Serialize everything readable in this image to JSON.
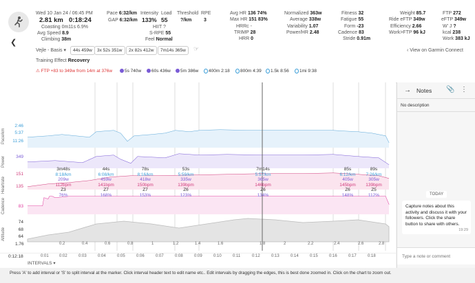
{
  "header": {
    "date": "Wed 10 Jan 24 / 06:45 PM",
    "distance": "2.81 km",
    "duration": "0:18:24",
    "coasting": "Coasting 0m11s",
    "coasting_pct": "6.9%",
    "avg_speed_label": "Avg Speed",
    "avg_speed": "8.9",
    "climbing_label": "Climbing",
    "climbing": "38m",
    "pace_label": "Pace",
    "pace": "6:32/km",
    "gap_label": "GAP",
    "gap": "6:32/km",
    "intensity_label": "Intensity",
    "intensity": "133%",
    "load_label": "Load",
    "load": "55",
    "hiit": "HIIT ?",
    "srpe_label": "S-RPE",
    "srpe": "55",
    "feel_label": "Feel",
    "feel": "Normal",
    "threshold_label": "Threshold",
    "threshold": "?/km",
    "rpe_label": "RPE",
    "rpe": "3",
    "avghr_label": "Avg HR",
    "avghr": "136",
    "avghr_pct": "74%",
    "maxhr_label": "Max HR",
    "maxhr": "151",
    "maxhr_pct": "83%",
    "hrrc": "HRRc -",
    "trimp_label": "TRIMP",
    "trimp": "28",
    "hrr_label": "HRR",
    "hrr": "0",
    "normalized_label": "Normalized",
    "normalized": "363w",
    "average_label": "Average",
    "average": "338w",
    "variability_label": "Variability",
    "variability": "1.07",
    "powerhr_label": "Power/HR",
    "powerhr": "2.48",
    "fitness_label": "Fitness",
    "fitness": "32",
    "fatigue_label": "Fatigue",
    "fatigue": "55",
    "form_label": "Form",
    "form": "-23",
    "cadence_label": "Cadence",
    "cadence": "83",
    "stride_label": "Stride",
    "stride": "0.91m",
    "weight_label": "Weight",
    "weight": "85.7",
    "rideeftp_label": "Ride eFTP",
    "rideeftp": "349w",
    "efficiency_label": "Efficiency",
    "efficiency": "2.66",
    "workftp_label": "Work>FTP",
    "workftp": "96 kJ",
    "ftp_label": "FTP",
    "ftp": "272",
    "eftp_label": "eFTP",
    "eftp": "349w",
    "wj_label": "W' J",
    "wj": "?",
    "kcal_label": "kcal",
    "kcal": "238",
    "work_label": "Work",
    "work": "383 kJ",
    "location": "Vejle - Basis",
    "chips": [
      "44s 459w",
      "3x 52s 351w",
      "2x 82s 412w",
      "7m14s 365w"
    ],
    "garmin_link": "View on Garmin Connect",
    "training_effect_label": "Training Effect",
    "training_effect": "Recovery",
    "interval_bar": {
      "ftp": "FTP +83 to 349w from 14m at 376w",
      "i1": "5s 740w",
      "i2": "60s 436w",
      "i3": "5m 386w",
      "i4": "400m 2:18",
      "i5": "800m 4:39",
      "i6": "1.5k 8:56",
      "i7": "1mi 9:38"
    }
  },
  "intervals": [
    {
      "dur": "3m48s",
      "pace": "8:18/km",
      "power": "209w",
      "hr": "112bpm",
      "zone": "Z3",
      "pct": "76%"
    },
    {
      "dur": "44s",
      "pace": "6:08/km",
      "power": "459w",
      "hr": "141bpm",
      "zone": "Z7",
      "pct": "168%"
    },
    {
      "dur": "78s",
      "pace": "8:16/km",
      "power": "418w",
      "hr": "150bpm",
      "zone": "Z7",
      "pct": "153%"
    },
    {
      "dur": "53s",
      "pace": "5:59/km",
      "power": "335w",
      "hr": "139bpm",
      "zone": "Z6",
      "pct": "123%"
    },
    {
      "dur": "7m14s",
      "pace": "5:57/km",
      "power": "365w",
      "hr": "146bpm",
      "zone": "Z6",
      "pct": "134%"
    },
    {
      "dur": "85s",
      "pace": "6:12/km",
      "power": "405w",
      "hr": "145bpm",
      "zone": "Z6",
      "pct": "148%"
    },
    {
      "dur": "89s",
      "pace": "7:26/km",
      "power": "305w",
      "hr": "139bpm",
      "zone": "Z5",
      "pct": "112%"
    }
  ],
  "axes": {
    "pace_label": "Pace/km",
    "pace_ticks": [
      "2:46",
      "5:37",
      "11:26"
    ],
    "power_label": "Power",
    "power_tick": "349",
    "hr_label": "Heartrate",
    "hr_ticks": [
      "151",
      "135"
    ],
    "cad_label": "Cadence",
    "cad_tick": "83",
    "alt_label": "Altitude",
    "alt_ticks": [
      "74",
      "68",
      "64"
    ],
    "dist_start": "1.76",
    "dist_ticks": [
      "0.2",
      "0.4",
      "0.6",
      "0.8",
      "1",
      "1.2",
      "1.4",
      "1.6",
      "1.8",
      "2",
      "2.2",
      "2.4",
      "2.6",
      "2.8"
    ],
    "time_start": "0:12:18",
    "time_ticks": [
      "0:01",
      "0:02",
      "0:03",
      "0:04",
      "0:05",
      "0:06",
      "0:07",
      "0:08",
      "0:09",
      "0:10",
      "0:11",
      "0:12",
      "0:13",
      "0:14",
      "0:15",
      "0:16",
      "0:17",
      "0:18"
    ],
    "intervals_label": "INTERVALS"
  },
  "notes": {
    "title": "Notes",
    "no_description": "No description",
    "today": "TODAY",
    "message": "Capture notes about this activity and discuss it with your followers. Click the share button to share with others.",
    "time": "19:29",
    "placeholder": "Type a note or comment"
  },
  "footer": "Press 'A' to add interval or 'S' to split interval at the marker. Click interval header text to edit name etc.. Edit intervals by dragging the edges, this is best done zoomed in. Click on the chart to zoom out.",
  "colors": {
    "pace": "#5aa7d8",
    "power": "#7a5bd6",
    "hr": "#d03a7b",
    "cadence": "#e0399e",
    "altitude": "#999999"
  }
}
